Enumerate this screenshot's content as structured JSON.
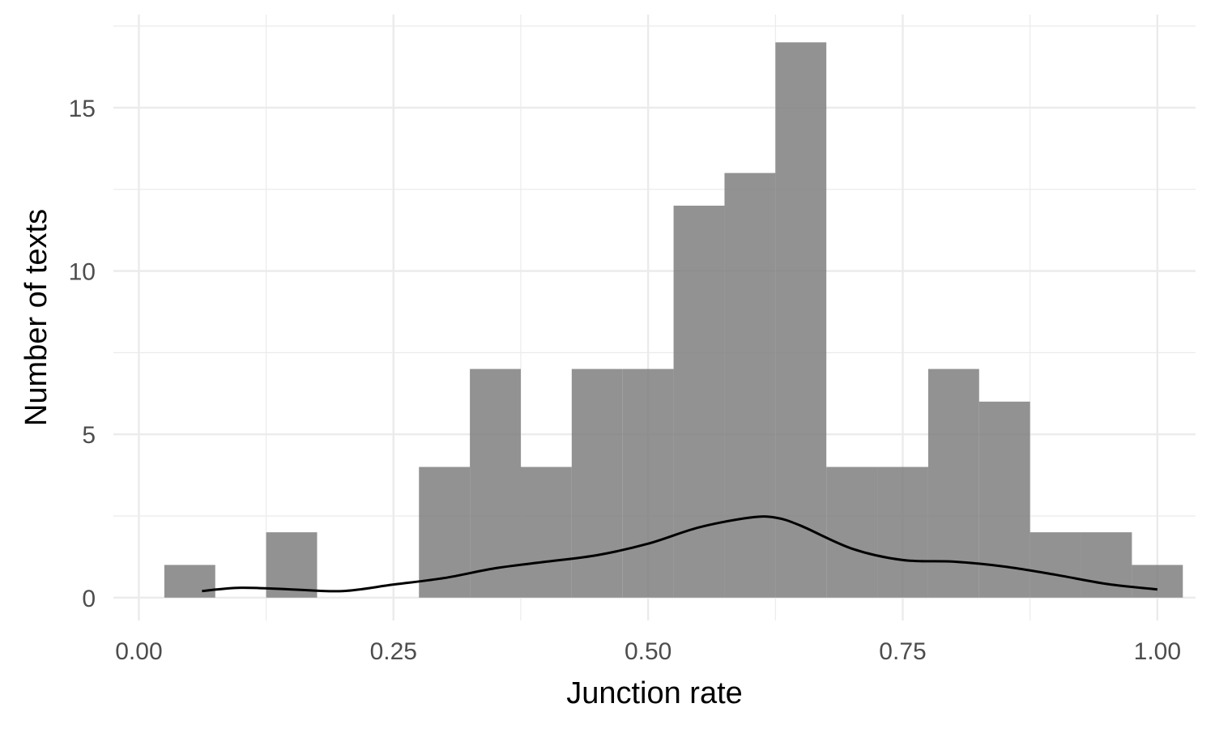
{
  "chart_data": {
    "type": "bar",
    "xlabel": "Junction rate",
    "ylabel": "Number of texts",
    "xlim": [
      -0.025,
      1.0375
    ],
    "ylim": [
      -0.7,
      17.85
    ],
    "x_ticks": [
      0.0,
      0.25,
      0.5,
      0.75,
      1.0
    ],
    "x_tick_labels": [
      "0.00",
      "0.25",
      "0.50",
      "0.75",
      "1.00"
    ],
    "y_ticks": [
      0,
      5,
      10,
      15
    ],
    "y_tick_labels": [
      "0",
      "5",
      "10",
      "15"
    ],
    "grid": true,
    "bin_width": 0.05,
    "bins": [
      {
        "x0": 0.025,
        "x1": 0.075,
        "count": 1
      },
      {
        "x0": 0.075,
        "x1": 0.125,
        "count": 0
      },
      {
        "x0": 0.125,
        "x1": 0.175,
        "count": 2
      },
      {
        "x0": 0.175,
        "x1": 0.225,
        "count": 0
      },
      {
        "x0": 0.225,
        "x1": 0.275,
        "count": 0
      },
      {
        "x0": 0.275,
        "x1": 0.325,
        "count": 4
      },
      {
        "x0": 0.325,
        "x1": 0.375,
        "count": 7
      },
      {
        "x0": 0.375,
        "x1": 0.425,
        "count": 4
      },
      {
        "x0": 0.425,
        "x1": 0.475,
        "count": 7
      },
      {
        "x0": 0.475,
        "x1": 0.525,
        "count": 7
      },
      {
        "x0": 0.525,
        "x1": 0.575,
        "count": 12
      },
      {
        "x0": 0.575,
        "x1": 0.625,
        "count": 13
      },
      {
        "x0": 0.625,
        "x1": 0.675,
        "count": 17
      },
      {
        "x0": 0.675,
        "x1": 0.725,
        "count": 4
      },
      {
        "x0": 0.725,
        "x1": 0.775,
        "count": 4
      },
      {
        "x0": 0.775,
        "x1": 0.825,
        "count": 7
      },
      {
        "x0": 0.825,
        "x1": 0.875,
        "count": 6
      },
      {
        "x0": 0.875,
        "x1": 0.925,
        "count": 2
      },
      {
        "x0": 0.925,
        "x1": 0.975,
        "count": 2
      },
      {
        "x0": 0.975,
        "x1": 1.025,
        "count": 1
      }
    ],
    "density_curve": {
      "x": [
        0.062,
        0.1,
        0.15,
        0.2,
        0.25,
        0.3,
        0.35,
        0.4,
        0.45,
        0.5,
        0.55,
        0.6,
        0.625,
        0.65,
        0.7,
        0.75,
        0.8,
        0.85,
        0.9,
        0.95,
        1.0
      ],
      "y": [
        0.2,
        0.3,
        0.25,
        0.2,
        0.4,
        0.6,
        0.9,
        1.1,
        1.3,
        1.65,
        2.15,
        2.45,
        2.45,
        2.2,
        1.5,
        1.15,
        1.1,
        0.95,
        0.7,
        0.42,
        0.25
      ]
    },
    "colors": {
      "bar_fill": "#7f7f7f",
      "curve": "#000000",
      "grid": "#ebebeb",
      "background": "#ffffff"
    }
  }
}
